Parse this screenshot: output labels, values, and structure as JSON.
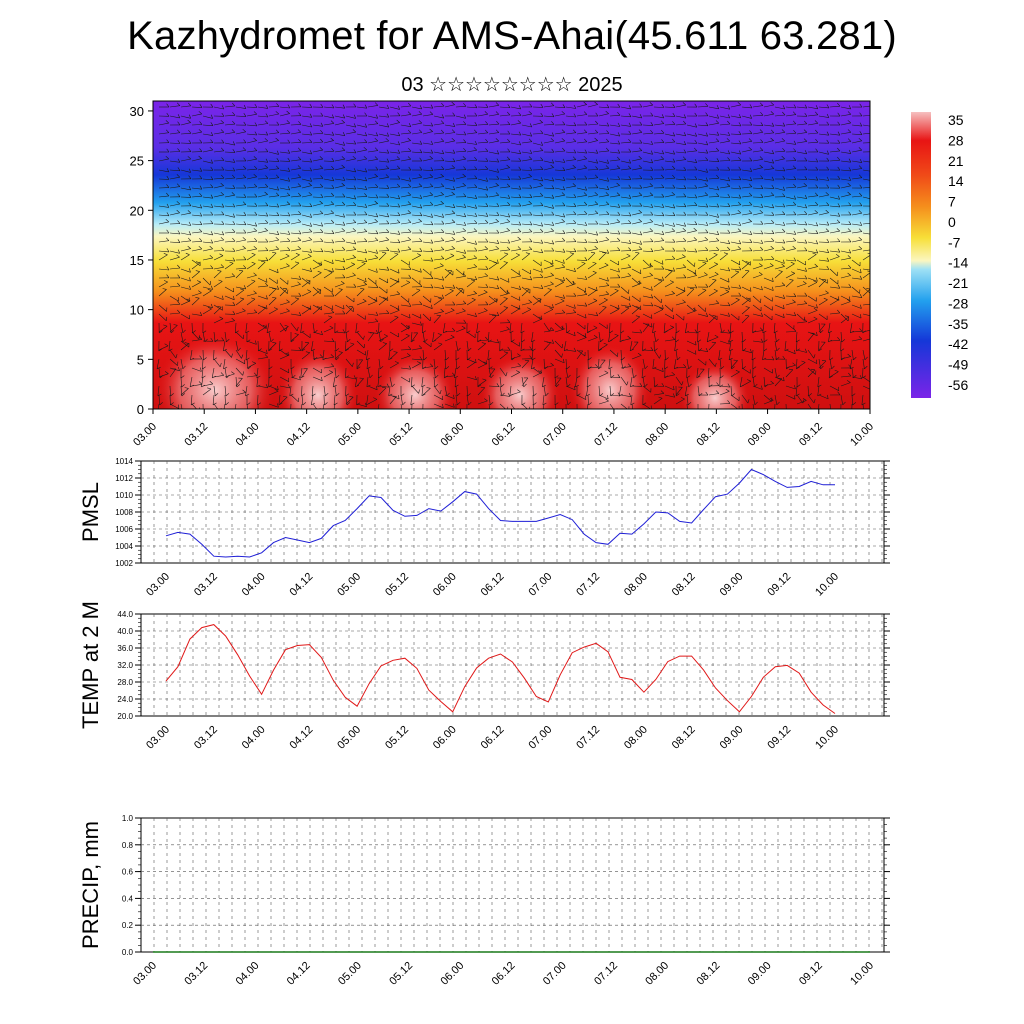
{
  "header": {
    "title": "Kazhydromet for AMS-Ahai(45.611 63.281)",
    "subtitle": "03 ☆☆☆☆☆☆☆☆ 2025"
  },
  "time_ticks": [
    "03.00",
    "03.12",
    "04.00",
    "04.12",
    "05.00",
    "05.12",
    "06.00",
    "06.12",
    "07.00",
    "07.12",
    "08.00",
    "08.12",
    "09.00",
    "09.12",
    "10.00"
  ],
  "chart_data": [
    {
      "type": "heatmap",
      "title": "Kazhydromet for AMS-Ahai(45.611 63.281)",
      "subtitle": "03 ☆☆☆☆☆☆☆☆ 2025",
      "x_ticks": [
        "03.00",
        "03.12",
        "04.00",
        "04.12",
        "05.00",
        "05.12",
        "06.00",
        "06.12",
        "07.00",
        "07.12",
        "08.00",
        "08.12",
        "09.00",
        "09.12",
        "10.00"
      ],
      "y_ticks": [
        0,
        5,
        10,
        15,
        20,
        25,
        30
      ],
      "ylim": [
        0,
        31
      ],
      "colorbar_labels": [
        35,
        28,
        21,
        14,
        7,
        0,
        -7,
        -14,
        -21,
        -28,
        -35,
        -42,
        -49,
        -56
      ],
      "colorbar_colors": [
        "#f6c0c0",
        "#e81414",
        "#f58e1c",
        "#f7df38",
        "#fbf6c0",
        "#9fe1f5",
        "#22a0ee",
        "#1537d8",
        "#7b24e8"
      ],
      "levels": [
        0,
        5,
        10,
        15,
        20,
        25,
        30
      ],
      "temperature_profile": [
        30,
        18,
        10,
        -3,
        -20,
        -45,
        -56
      ],
      "overlay": "wind barbs"
    },
    {
      "type": "line",
      "ylabel": "PMSL",
      "ylim": [
        1002,
        1014
      ],
      "y_ticks": [
        "1002",
        "1004",
        "1006",
        "1008",
        "1010",
        "1012",
        "1014"
      ],
      "x_ticks": [
        "03.00",
        "03.12",
        "04.00",
        "04.12",
        "05.00",
        "05.12",
        "06.00",
        "06.12",
        "07.00",
        "07.12",
        "08.00",
        "08.12",
        "09.00",
        "09.12",
        "10.00"
      ],
      "color": "#1f1fd6",
      "values": [
        1005.2,
        1005.6,
        1005.4,
        1004.2,
        1002.8,
        1002.7,
        1002.8,
        1002.7,
        1003.2,
        1004.4,
        1005.0,
        1004.7,
        1004.4,
        1004.9,
        1006.4,
        1007.0,
        1008.4,
        1009.9,
        1009.7,
        1008.2,
        1007.5,
        1007.6,
        1008.4,
        1008.1,
        1009.2,
        1010.4,
        1010.1,
        1008.4,
        1007.0,
        1006.9,
        1006.9,
        1006.9,
        1007.3,
        1007.7,
        1007.1,
        1005.4,
        1004.4,
        1004.2,
        1005.5,
        1005.4,
        1006.6,
        1008.0,
        1007.9,
        1006.9,
        1006.7,
        1008.3,
        1009.8,
        1010.1,
        1011.4,
        1013.0,
        1012.4,
        1011.6,
        1010.9,
        1011.0,
        1011.6,
        1011.2,
        1011.2
      ]
    },
    {
      "type": "line",
      "ylabel": "TEMP at 2 M",
      "ylim": [
        20,
        44
      ],
      "y_ticks": [
        "20.0",
        "24.0",
        "28.0",
        "32.0",
        "36.0",
        "40.0",
        "44.0"
      ],
      "x_ticks": [
        "03.00",
        "03.12",
        "04.00",
        "04.12",
        "05.00",
        "05.12",
        "06.00",
        "06.12",
        "07.00",
        "07.12",
        "08.00",
        "08.12",
        "09.00",
        "09.12",
        "10.00"
      ],
      "color": "#e01818",
      "values": [
        28.2,
        31.6,
        38.1,
        40.8,
        41.5,
        38.8,
        34.4,
        29.4,
        25.1,
        30.8,
        35.6,
        36.6,
        36.8,
        33.8,
        28.4,
        24.4,
        22.3,
        27.6,
        31.8,
        33.1,
        33.6,
        31.2,
        26.1,
        23.4,
        21.0,
        26.9,
        31.3,
        33.6,
        34.6,
        32.7,
        28.9,
        24.6,
        23.3,
        29.7,
        34.9,
        36.2,
        37.1,
        35.1,
        29.1,
        28.6,
        25.6,
        28.6,
        32.8,
        34.1,
        34.1,
        30.8,
        26.6,
        23.6,
        21.0,
        24.6,
        29.1,
        31.6,
        31.9,
        30.1,
        25.6,
        22.6,
        20.6
      ]
    },
    {
      "type": "line",
      "ylabel": "PRECIP, mm",
      "ylim": [
        0,
        1
      ],
      "y_ticks": [
        "0.0",
        "0.2",
        "0.4",
        "0.6",
        "0.8",
        "1.0"
      ],
      "x_ticks": [
        "03.00",
        "03.12",
        "04.00",
        "04.12",
        "05.00",
        "05.12",
        "06.00",
        "06.12",
        "07.00",
        "07.12",
        "08.00",
        "08.12",
        "09.00",
        "09.12",
        "10.00"
      ],
      "color": "#1a7a1a",
      "values": [
        0,
        0,
        0,
        0,
        0,
        0,
        0,
        0,
        0,
        0,
        0,
        0,
        0,
        0,
        0,
        0,
        0,
        0,
        0,
        0,
        0,
        0,
        0,
        0,
        0,
        0,
        0,
        0,
        0,
        0,
        0,
        0,
        0,
        0,
        0,
        0,
        0,
        0,
        0,
        0,
        0,
        0,
        0,
        0,
        0,
        0,
        0,
        0,
        0,
        0,
        0,
        0,
        0,
        0,
        0,
        0,
        0
      ]
    }
  ]
}
